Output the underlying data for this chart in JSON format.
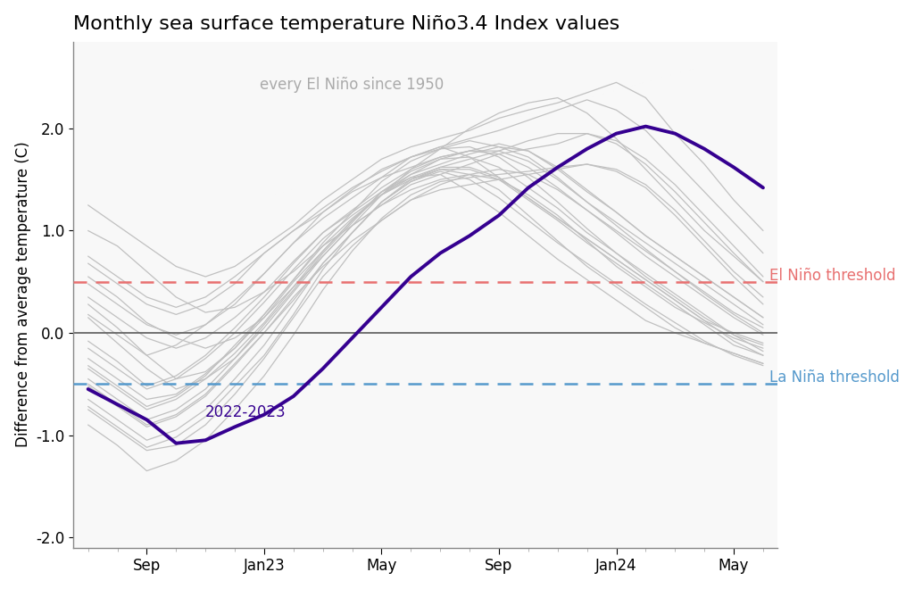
{
  "title": "Monthly sea surface temperature Niño3.4 Index values",
  "ylabel": "Difference from average temperature (C)",
  "el_nino_threshold": 0.5,
  "la_nina_threshold": -0.5,
  "el_nino_label": "El Niño threshold",
  "la_nina_label": "La Niña threshold",
  "annotation_label": "every El Niño since 1950",
  "main_label": "2022-2023",
  "ylim": [
    -2.1,
    2.85
  ],
  "n_months": 24,
  "xtick_positions": [
    2,
    6,
    10,
    14,
    18,
    22
  ],
  "xtick_labels": [
    "Sep",
    "Jan23",
    "May",
    "Sep",
    "Jan24",
    "May"
  ],
  "ytick_positions": [
    -2.0,
    -1.0,
    0.0,
    1.0,
    2.0
  ],
  "main_color": "#350090",
  "gray_color": "#c0c0c0",
  "el_nino_color": "#e87070",
  "la_nina_color": "#5599cc",
  "zero_line_color": "#666666",
  "bg_color": "#f8f8f8",
  "title_fontsize": 16,
  "label_fontsize": 12,
  "annotation_fontsize": 12,
  "main_linewidth": 2.8,
  "gray_linewidth": 0.9,
  "main_series": [
    -0.55,
    -0.7,
    -0.85,
    -1.08,
    -1.05,
    -0.92,
    -0.8,
    -0.62,
    -0.35,
    -0.05,
    0.25,
    0.55,
    0.78,
    0.95,
    1.15,
    1.42,
    1.62,
    1.8,
    1.95,
    2.02,
    1.95,
    1.8,
    1.62,
    1.42
  ],
  "gray_series": [
    [
      -0.5,
      -0.7,
      -0.9,
      -0.8,
      -0.6,
      -0.3,
      0.0,
      0.35,
      0.65,
      0.9,
      1.1,
      1.3,
      1.45,
      1.55,
      1.6,
      1.55,
      1.4,
      1.2,
      1.0,
      0.8,
      0.6,
      0.4,
      0.2,
      0.05
    ],
    [
      0.15,
      -0.1,
      -0.35,
      -0.55,
      -0.45,
      -0.25,
      0.05,
      0.4,
      0.75,
      1.05,
      1.35,
      1.6,
      1.8,
      2.0,
      2.15,
      2.25,
      2.3,
      2.15,
      1.9,
      1.6,
      1.3,
      1.0,
      0.75,
      0.5
    ],
    [
      1.0,
      0.85,
      0.6,
      0.35,
      0.2,
      0.25,
      0.4,
      0.6,
      0.85,
      1.05,
      1.25,
      1.4,
      1.5,
      1.55,
      1.5,
      1.35,
      1.15,
      0.9,
      0.65,
      0.45,
      0.25,
      0.1,
      -0.05,
      -0.15
    ],
    [
      -0.25,
      -0.45,
      -0.65,
      -0.6,
      -0.4,
      -0.15,
      0.15,
      0.5,
      0.8,
      1.1,
      1.35,
      1.5,
      1.6,
      1.55,
      1.4,
      1.15,
      0.9,
      0.65,
      0.45,
      0.25,
      0.05,
      -0.1,
      -0.2,
      -0.3
    ],
    [
      -0.75,
      -0.95,
      -1.15,
      -1.1,
      -0.9,
      -0.6,
      -0.25,
      0.15,
      0.55,
      0.85,
      1.1,
      1.3,
      1.4,
      1.45,
      1.5,
      1.55,
      1.6,
      1.65,
      1.6,
      1.45,
      1.2,
      0.9,
      0.6,
      0.35
    ],
    [
      0.55,
      0.35,
      0.1,
      -0.05,
      -0.15,
      -0.05,
      0.15,
      0.45,
      0.75,
      1.05,
      1.25,
      1.45,
      1.55,
      1.65,
      1.75,
      1.8,
      1.85,
      1.95,
      1.88,
      1.7,
      1.45,
      1.15,
      0.85,
      0.55
    ],
    [
      -0.35,
      -0.55,
      -0.75,
      -0.65,
      -0.45,
      -0.2,
      0.1,
      0.45,
      0.8,
      1.1,
      1.38,
      1.52,
      1.55,
      1.38,
      1.18,
      0.95,
      0.72,
      0.52,
      0.32,
      0.12,
      0.0,
      -0.1,
      -0.2,
      -0.3
    ],
    [
      1.25,
      1.05,
      0.85,
      0.65,
      0.55,
      0.65,
      0.85,
      1.05,
      1.3,
      1.5,
      1.7,
      1.82,
      1.9,
      1.98,
      2.1,
      2.18,
      2.25,
      2.35,
      2.45,
      2.3,
      1.95,
      1.65,
      1.3,
      1.0
    ],
    [
      -0.15,
      -0.35,
      -0.55,
      -0.45,
      -0.25,
      0.0,
      0.3,
      0.62,
      0.92,
      1.15,
      1.35,
      1.52,
      1.62,
      1.7,
      1.78,
      1.88,
      1.95,
      1.95,
      1.85,
      1.65,
      1.38,
      1.08,
      0.78,
      0.5
    ],
    [
      0.35,
      0.15,
      -0.05,
      -0.15,
      -0.05,
      0.15,
      0.4,
      0.7,
      0.98,
      1.18,
      1.38,
      1.55,
      1.65,
      1.75,
      1.82,
      1.78,
      1.62,
      1.4,
      1.18,
      0.95,
      0.75,
      0.55,
      0.35,
      0.15
    ],
    [
      -0.65,
      -0.85,
      -1.05,
      -0.95,
      -0.75,
      -0.45,
      -0.12,
      0.28,
      0.68,
      0.98,
      1.28,
      1.48,
      1.58,
      1.5,
      1.32,
      1.1,
      0.88,
      0.68,
      0.48,
      0.28,
      0.1,
      -0.08,
      -0.22,
      -0.32
    ],
    [
      0.75,
      0.55,
      0.35,
      0.25,
      0.35,
      0.55,
      0.78,
      1.0,
      1.18,
      1.38,
      1.52,
      1.62,
      1.72,
      1.78,
      1.85,
      1.78,
      1.6,
      1.38,
      1.18,
      0.95,
      0.75,
      0.55,
      0.35,
      0.15
    ],
    [
      -0.45,
      -0.65,
      -0.85,
      -0.75,
      -0.55,
      -0.25,
      0.08,
      0.42,
      0.78,
      1.08,
      1.38,
      1.58,
      1.7,
      1.72,
      1.62,
      1.42,
      1.22,
      0.98,
      0.78,
      0.55,
      0.35,
      0.15,
      -0.02,
      -0.18
    ],
    [
      0.18,
      -0.02,
      -0.22,
      -0.12,
      0.08,
      0.32,
      0.58,
      0.88,
      1.12,
      1.32,
      1.52,
      1.72,
      1.82,
      1.72,
      1.52,
      1.32,
      1.12,
      0.92,
      0.72,
      0.52,
      0.32,
      0.12,
      0.0,
      -0.1
    ],
    [
      -0.72,
      -0.92,
      -1.12,
      -1.02,
      -0.82,
      -0.52,
      -0.22,
      0.18,
      0.62,
      0.98,
      1.28,
      1.5,
      1.62,
      1.62,
      1.52,
      1.32,
      1.12,
      0.92,
      0.72,
      0.52,
      0.32,
      0.12,
      -0.08,
      -0.22
    ],
    [
      0.48,
      0.28,
      0.08,
      -0.02,
      0.08,
      0.28,
      0.58,
      0.88,
      1.18,
      1.4,
      1.6,
      1.72,
      1.82,
      1.9,
      1.98,
      2.08,
      2.18,
      2.28,
      2.18,
      1.98,
      1.68,
      1.38,
      1.08,
      0.78
    ],
    [
      -0.32,
      -0.52,
      -0.72,
      -0.62,
      -0.42,
      -0.12,
      0.18,
      0.52,
      0.88,
      1.18,
      1.48,
      1.68,
      1.8,
      1.82,
      1.72,
      1.52,
      1.28,
      1.02,
      0.78,
      0.58,
      0.38,
      0.18,
      -0.02,
      -0.12
    ],
    [
      0.68,
      0.48,
      0.28,
      0.18,
      0.28,
      0.48,
      0.78,
      1.0,
      1.22,
      1.42,
      1.58,
      1.72,
      1.8,
      1.88,
      1.82,
      1.72,
      1.52,
      1.28,
      1.08,
      0.88,
      0.68,
      0.48,
      0.28,
      0.08
    ],
    [
      -0.52,
      -0.72,
      -0.92,
      -0.82,
      -0.62,
      -0.32,
      0.0,
      0.32,
      0.68,
      0.98,
      1.28,
      1.48,
      1.6,
      1.6,
      1.5,
      1.3,
      1.1,
      0.88,
      0.68,
      0.48,
      0.28,
      0.08,
      -0.12,
      -0.22
    ],
    [
      -0.9,
      -1.1,
      -1.35,
      -1.25,
      -1.05,
      -0.75,
      -0.42,
      -0.02,
      0.42,
      0.8,
      1.12,
      1.35,
      1.48,
      1.52,
      1.55,
      1.58,
      1.62,
      1.65,
      1.58,
      1.42,
      1.15,
      0.85,
      0.55,
      0.28
    ],
    [
      0.28,
      0.05,
      -0.22,
      -0.45,
      -0.38,
      -0.15,
      0.18,
      0.52,
      0.85,
      1.12,
      1.35,
      1.55,
      1.7,
      1.78,
      1.78,
      1.68,
      1.5,
      1.28,
      1.05,
      0.82,
      0.6,
      0.38,
      0.18,
      0.0
    ],
    [
      -0.08,
      -0.28,
      -0.52,
      -0.42,
      -0.22,
      0.05,
      0.35,
      0.68,
      0.98,
      1.2,
      1.42,
      1.6,
      1.72,
      1.78,
      1.75,
      1.62,
      1.42,
      1.2,
      0.98,
      0.75,
      0.55,
      0.35,
      0.15,
      -0.02
    ]
  ]
}
